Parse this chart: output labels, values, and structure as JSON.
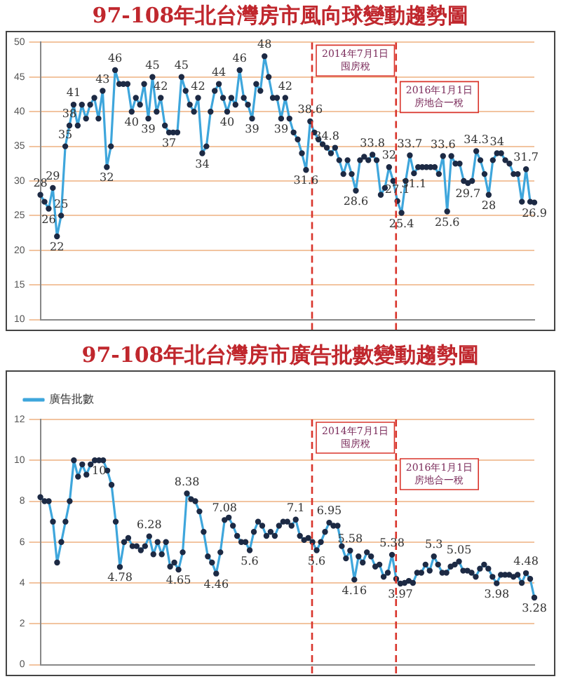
{
  "chart_data": [
    {
      "type": "line",
      "title": "97-108年北台灣房市風向球變動趨勢圖",
      "categories": [
        null,
        null,
        null,
        null,
        null,
        null,
        null,
        null,
        null,
        null,
        null,
        null,
        null,
        null,
        null,
        null,
        null,
        null,
        null,
        null,
        null,
        null,
        null,
        null,
        null,
        null,
        null,
        null,
        null,
        null,
        null,
        null,
        null,
        null,
        null,
        null,
        null,
        null,
        null,
        null,
        null,
        null,
        null,
        null,
        null,
        null,
        null,
        null,
        null,
        null,
        null,
        null,
        null,
        null,
        null,
        null,
        null,
        null,
        null,
        null,
        null,
        null,
        null,
        null,
        null,
        null,
        null,
        null,
        null,
        null,
        null,
        null,
        null,
        null,
        null,
        null,
        null,
        null,
        null,
        null,
        null,
        null,
        null,
        null,
        null,
        null,
        null,
        null,
        null,
        null,
        null,
        null,
        null,
        null,
        null,
        null,
        null,
        null,
        null,
        null,
        null,
        null,
        null,
        null,
        null,
        null,
        null,
        null,
        null,
        null,
        null,
        null,
        null,
        null,
        null,
        null,
        null,
        null,
        null,
        null
      ],
      "series": [
        {
          "color": "#3ea6dc",
          "values": [
            28,
            27,
            26,
            29,
            22,
            25,
            35,
            38,
            41,
            38,
            41,
            39,
            41,
            42,
            39,
            43,
            32,
            35,
            46,
            44,
            44,
            44,
            40,
            42,
            41,
            44,
            39,
            45,
            40,
            42,
            38,
            37,
            37,
            37,
            45,
            43,
            41,
            40,
            42,
            34,
            35,
            40,
            43,
            44,
            42,
            40,
            42,
            41,
            46,
            42,
            41,
            39,
            44,
            43,
            48,
            45,
            42,
            42,
            39,
            42,
            39,
            37,
            36,
            34,
            31.6,
            38.6,
            37,
            36,
            35.3,
            34.8,
            34,
            34.8,
            33,
            31,
            33,
            31,
            28.6,
            33,
            33.5,
            33,
            33.8,
            33,
            28,
            29,
            32,
            30,
            27.1,
            25.4,
            30,
            33.7,
            31.1,
            32,
            32,
            32,
            32,
            32,
            31,
            33.6,
            25.6,
            33.6,
            32.5,
            32.5,
            30,
            29.7,
            30,
            34.3,
            33,
            31,
            28,
            33,
            34,
            34,
            33,
            32.5,
            31,
            31,
            27,
            31.7,
            27,
            26.9
          ],
          "value_labels": [
            "28",
            null,
            "26",
            "29",
            "22",
            "25",
            "35",
            "38",
            "41",
            null,
            null,
            null,
            null,
            null,
            null,
            "43",
            "32",
            null,
            "46",
            null,
            null,
            null,
            "40",
            null,
            null,
            null,
            "39",
            "45",
            null,
            "42",
            null,
            "37",
            null,
            null,
            "45",
            null,
            null,
            null,
            "42",
            "34",
            null,
            null,
            null,
            "44",
            null,
            "40",
            null,
            null,
            "46",
            null,
            null,
            "39",
            null,
            null,
            "48",
            null,
            null,
            null,
            "39",
            "42",
            null,
            null,
            null,
            null,
            "31.6",
            "38.6",
            null,
            null,
            null,
            "34.8",
            null,
            null,
            null,
            null,
            null,
            null,
            "28.6",
            null,
            null,
            null,
            "33.8",
            null,
            null,
            null,
            "32",
            null,
            "27.1",
            "25.4",
            null,
            "33.7",
            "31.1",
            null,
            null,
            null,
            null,
            null,
            null,
            "33.6",
            "25.6",
            null,
            null,
            null,
            null,
            "29.7",
            null,
            "34.3",
            null,
            null,
            "28",
            null,
            "34",
            null,
            null,
            null,
            null,
            null,
            null,
            "31.7",
            null,
            "26.9"
          ]
        }
      ],
      "ylim": [
        10,
        50
      ],
      "yticks": [
        10,
        15,
        20,
        25,
        30,
        35,
        40,
        45,
        50
      ],
      "grid": "y",
      "marker": "circle",
      "tick_labels": "y",
      "annotations": [
        "2014年7月1日囤房稅",
        "2016年1月1日房地合一稅"
      ]
    },
    {
      "type": "line",
      "title": "97-108年北台灣房市廣告批數變動趨勢圖",
      "categories": [
        null,
        null,
        null,
        null,
        null,
        null,
        null,
        null,
        null,
        null,
        null,
        null,
        null,
        null,
        null,
        null,
        null,
        null,
        null,
        null,
        null,
        null,
        null,
        null,
        null,
        null,
        null,
        null,
        null,
        null,
        null,
        null,
        null,
        null,
        null,
        null,
        null,
        null,
        null,
        null,
        null,
        null,
        null,
        null,
        null,
        null,
        null,
        null,
        null,
        null,
        null,
        null,
        null,
        null,
        null,
        null,
        null,
        null,
        null,
        null,
        null,
        null,
        null,
        null,
        null,
        null,
        null,
        null,
        null,
        null,
        null,
        null,
        null,
        null,
        null,
        null,
        null,
        null,
        null,
        null,
        null,
        null,
        null,
        null,
        null,
        null,
        null,
        null,
        null,
        null,
        null,
        null,
        null,
        null,
        null,
        null,
        null,
        null,
        null,
        null,
        null,
        null,
        null,
        null,
        null,
        null,
        null,
        null,
        null,
        null,
        null,
        null,
        null,
        null,
        null,
        null,
        null,
        null,
        null
      ],
      "series": [
        {
          "name": "廣告批數",
          "color": "#3ea6dc",
          "values": [
            8.2,
            8,
            8,
            7,
            5,
            6,
            7,
            8,
            10,
            9.2,
            9.8,
            9.3,
            9.8,
            10,
            10,
            10,
            9.5,
            8.8,
            7,
            4.78,
            6,
            6.2,
            5.8,
            5.8,
            5.6,
            5.8,
            6.28,
            5.4,
            6,
            5.4,
            6,
            4.8,
            5,
            4.65,
            5.5,
            8.38,
            8.1,
            8,
            7.5,
            6.5,
            5.3,
            5,
            4.46,
            5.5,
            7.08,
            7.2,
            6.8,
            6.3,
            6,
            6,
            5.6,
            6.5,
            7,
            6.8,
            6.3,
            6.5,
            6.3,
            6.8,
            7,
            7,
            6.8,
            7.1,
            6.3,
            6.1,
            6.2,
            6,
            5.6,
            6,
            6.5,
            6.95,
            6.8,
            6.8,
            5.8,
            5.2,
            5.58,
            4.16,
            5.3,
            5,
            5.5,
            5.3,
            4.8,
            4.9,
            4.3,
            4.5,
            5.38,
            4.2,
            3.97,
            4,
            4.1,
            4,
            4.5,
            4.5,
            4.9,
            4.6,
            5.3,
            4.9,
            4.5,
            4.5,
            4.8,
            4.9,
            5.05,
            4.6,
            4.6,
            4.5,
            4.3,
            4.7,
            4.9,
            4.7,
            4.3,
            3.98,
            4.4,
            4.4,
            4.4,
            4.3,
            4.4,
            4,
            4.48,
            4.2,
            3.28
          ],
          "value_labels": [
            null,
            null,
            null,
            null,
            null,
            null,
            null,
            null,
            null,
            null,
            null,
            null,
            null,
            null,
            "10",
            null,
            null,
            null,
            null,
            "4.78",
            null,
            null,
            null,
            null,
            null,
            null,
            "6.28",
            null,
            null,
            null,
            null,
            null,
            null,
            "4.65",
            null,
            "8.38",
            null,
            null,
            null,
            null,
            null,
            null,
            "4.46",
            null,
            "7.08",
            null,
            null,
            null,
            null,
            null,
            "5.6",
            null,
            null,
            null,
            null,
            null,
            null,
            null,
            null,
            null,
            null,
            "7.1",
            null,
            null,
            null,
            null,
            "5.6",
            null,
            null,
            "6.95",
            null,
            null,
            null,
            null,
            "5.58",
            "4.16",
            null,
            null,
            null,
            null,
            null,
            null,
            null,
            null,
            "5.38",
            null,
            "3.97",
            null,
            null,
            null,
            null,
            null,
            null,
            null,
            "5.3",
            null,
            null,
            null,
            null,
            null,
            "5.05",
            null,
            null,
            null,
            null,
            null,
            null,
            null,
            null,
            "3.98",
            null,
            null,
            null,
            null,
            null,
            null,
            "4.48",
            null,
            "3.28"
          ]
        }
      ],
      "ylim": [
        0,
        12
      ],
      "yticks": [
        0,
        2,
        4,
        6,
        8,
        10,
        12
      ],
      "grid": "y",
      "marker": "circle",
      "tick_labels": "y",
      "legend": "top left",
      "annotations": [
        "2014年7月1日囤房稅",
        "2016年1月1日房地合一稅"
      ]
    }
  ]
}
